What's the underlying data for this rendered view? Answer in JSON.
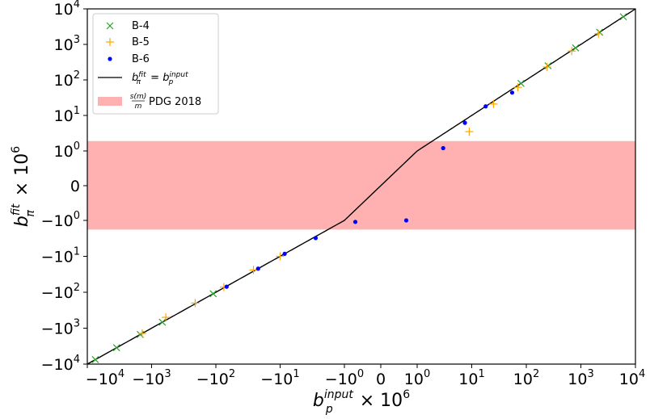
{
  "chart_data": {
    "type": "scatter",
    "title": "",
    "xscale": "symlog",
    "yscale": "symlog",
    "linthresh": 1,
    "xlim": [
      -10000,
      10000
    ],
    "ylim": [
      -10000,
      10000
    ],
    "xlabel": {
      "base": "b",
      "sub": "p",
      "sup": "input",
      "tail": " × 10",
      "tail_sup": "6"
    },
    "ylabel": {
      "base": "b",
      "sub": "π",
      "sup": "fit",
      "tail": " × 10",
      "tail_sup": "6"
    },
    "x_ticks": [
      {
        "value": -10000,
        "base": "−10",
        "exp": "4"
      },
      {
        "value": -1000,
        "base": "−10",
        "exp": "3"
      },
      {
        "value": -100,
        "base": "−10",
        "exp": "2"
      },
      {
        "value": -10,
        "base": "−10",
        "exp": "1"
      },
      {
        "value": -1,
        "base": "−10",
        "exp": "0"
      },
      {
        "value": 0,
        "base": "0",
        "exp": ""
      },
      {
        "value": 1,
        "base": "10",
        "exp": "0"
      },
      {
        "value": 10,
        "base": "10",
        "exp": "1"
      },
      {
        "value": 100,
        "base": "10",
        "exp": "2"
      },
      {
        "value": 1000,
        "base": "10",
        "exp": "3"
      },
      {
        "value": 10000,
        "base": "10",
        "exp": "4"
      }
    ],
    "y_ticks": [
      {
        "value": -10000,
        "base": "−10",
        "exp": "4"
      },
      {
        "value": -1000,
        "base": "−10",
        "exp": "3"
      },
      {
        "value": -100,
        "base": "−10",
        "exp": "2"
      },
      {
        "value": -10,
        "base": "−10",
        "exp": "1"
      },
      {
        "value": -1,
        "base": "−10",
        "exp": "0"
      },
      {
        "value": 0,
        "base": "0",
        "exp": ""
      },
      {
        "value": 1,
        "base": "10",
        "exp": "0"
      },
      {
        "value": 10,
        "base": "10",
        "exp": "1"
      },
      {
        "value": 100,
        "base": "10",
        "exp": "2"
      },
      {
        "value": 1000,
        "base": "10",
        "exp": "3"
      },
      {
        "value": 10000,
        "base": "10",
        "exp": "4"
      }
    ],
    "band": {
      "name": "PDG 2018",
      "label_fraction": {
        "num": "s(m)",
        "den": "m"
      },
      "y_low": -1.8,
      "y_high": 1.9,
      "color": "#ffb0b0"
    },
    "reference_line": {
      "label": "b_π^fit = b_p^input",
      "color": "#000000"
    },
    "series": [
      {
        "name": "B-4",
        "marker": "x",
        "color": "#2ca02c",
        "points": [
          [
            -7500,
            -7500
          ],
          [
            -3500,
            -3500
          ],
          [
            -1500,
            -1500
          ],
          [
            -680,
            -680
          ],
          [
            -110,
            -110
          ],
          [
            80,
            80
          ],
          [
            250,
            250
          ],
          [
            800,
            800
          ],
          [
            2200,
            2200
          ],
          [
            6000,
            6000
          ]
        ]
      },
      {
        "name": "B-5",
        "marker": "+",
        "color": "#ffa500",
        "points": [
          [
            -1400,
            -1400
          ],
          [
            -600,
            -500
          ],
          [
            -210,
            -200
          ],
          [
            -75,
            -72
          ],
          [
            -26,
            -24
          ],
          [
            -10,
            -10
          ],
          [
            9,
            3.5
          ],
          [
            25,
            21
          ],
          [
            70,
            62
          ],
          [
            240,
            230
          ],
          [
            680,
            650
          ],
          [
            2100,
            2000
          ]
        ]
      },
      {
        "name": "B-6",
        "marker": "o",
        "color": "#0000ff",
        "points": [
          [
            -68,
            -70
          ],
          [
            -22,
            -22
          ],
          [
            -8.5,
            -8.5
          ],
          [
            -2.8,
            -3.1
          ],
          [
            -0.7,
            -1.1
          ],
          [
            0.7,
            -1.0
          ],
          [
            3.0,
            1.2
          ],
          [
            7.5,
            6.2
          ],
          [
            18,
            18
          ],
          [
            55,
            44
          ]
        ]
      }
    ]
  },
  "legend": {
    "items": [
      {
        "key": "B-4",
        "label": "B-4"
      },
      {
        "key": "B-5",
        "label": "B-5"
      },
      {
        "key": "B-6",
        "label": "B-6"
      },
      {
        "key": "line",
        "label": ""
      },
      {
        "key": "band",
        "label": "PDG 2018"
      }
    ]
  },
  "colors": {
    "axis": "#000000",
    "background": "#ffffff"
  }
}
